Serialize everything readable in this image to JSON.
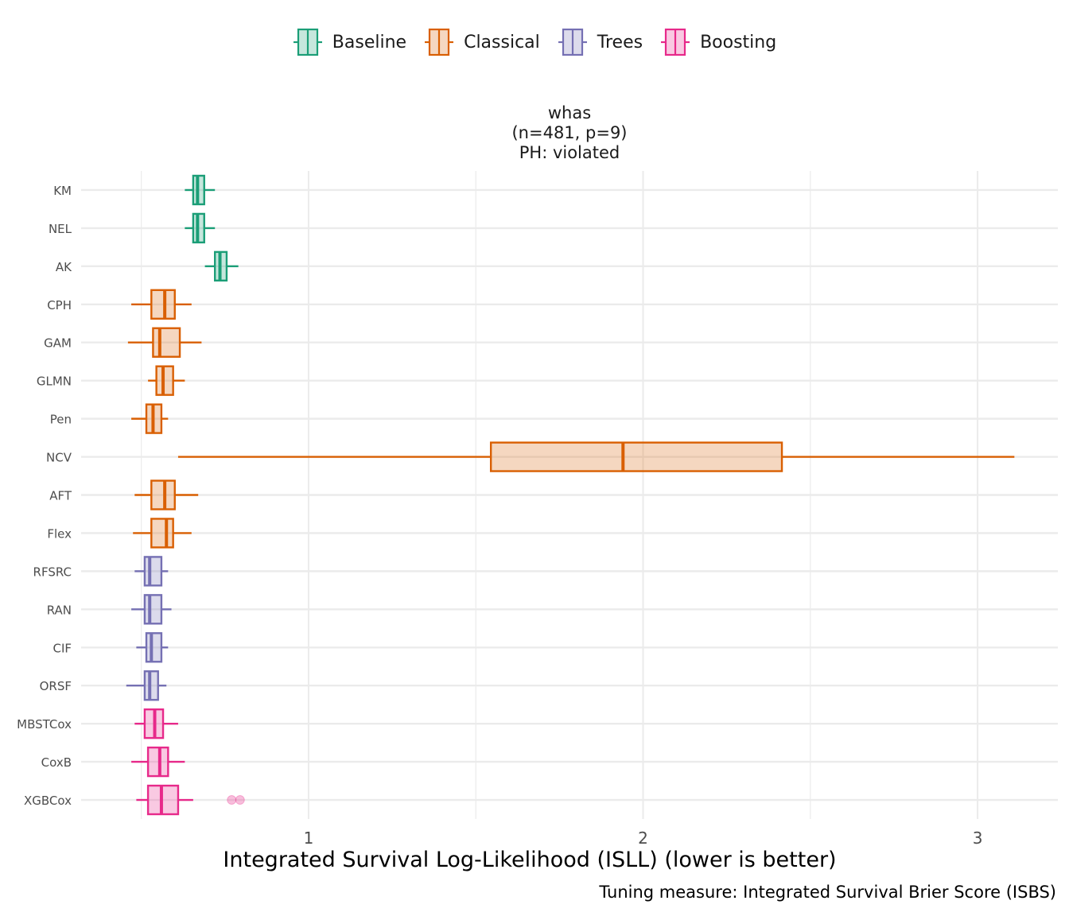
{
  "legend": [
    {
      "name": "Baseline",
      "color": "#1b9e77"
    },
    {
      "name": "Classical",
      "color": "#d95f02"
    },
    {
      "name": "Trees",
      "color": "#7570b3"
    },
    {
      "name": "Boosting",
      "color": "#e7298a"
    }
  ],
  "facet": {
    "line1": "whas",
    "line2": "(n=481, p=9)",
    "line3": "PH: violated"
  },
  "x_title": "Integrated Survival Log-Likelihood (ISLL) (lower is better)",
  "caption": "Tuning measure: Integrated Survival Brier Score (ISBS)",
  "chart_data": {
    "type": "boxplot",
    "orientation": "horizontal",
    "xlim": [
      0.32,
      3.24
    ],
    "x_ticks": [
      1,
      2,
      3
    ],
    "x_tick_labels": [
      "1",
      "2",
      "3"
    ],
    "grid": true,
    "legend_position": "top",
    "categories": [
      "KM",
      "NEL",
      "AK",
      "CPH",
      "GAM",
      "GLMN",
      "Pen",
      "NCV",
      "AFT",
      "Flex",
      "RFSRC",
      "RAN",
      "CIF",
      "ORSF",
      "MBSTCox",
      "CoxB",
      "XGBCox"
    ],
    "boxes": [
      {
        "label": "KM",
        "group": "Baseline",
        "whisker_low": 0.63,
        "q1": 0.655,
        "median": 0.668,
        "q3": 0.688,
        "whisker_high": 0.72,
        "outliers": []
      },
      {
        "label": "NEL",
        "group": "Baseline",
        "whisker_low": 0.63,
        "q1": 0.655,
        "median": 0.668,
        "q3": 0.688,
        "whisker_high": 0.72,
        "outliers": []
      },
      {
        "label": "AK",
        "group": "Baseline",
        "whisker_low": 0.69,
        "q1": 0.72,
        "median": 0.735,
        "q3": 0.755,
        "whisker_high": 0.79,
        "outliers": []
      },
      {
        "label": "CPH",
        "group": "Classical",
        "whisker_low": 0.47,
        "q1": 0.53,
        "median": 0.57,
        "q3": 0.6,
        "whisker_high": 0.65,
        "outliers": []
      },
      {
        "label": "GAM",
        "group": "Classical",
        "whisker_low": 0.46,
        "q1": 0.535,
        "median": 0.555,
        "q3": 0.615,
        "whisker_high": 0.68,
        "outliers": []
      },
      {
        "label": "GLMN",
        "group": "Classical",
        "whisker_low": 0.52,
        "q1": 0.545,
        "median": 0.565,
        "q3": 0.595,
        "whisker_high": 0.63,
        "outliers": []
      },
      {
        "label": "Pen",
        "group": "Classical",
        "whisker_low": 0.47,
        "q1": 0.515,
        "median": 0.535,
        "q3": 0.56,
        "whisker_high": 0.58,
        "outliers": []
      },
      {
        "label": "NCV",
        "group": "Classical",
        "whisker_low": 0.61,
        "q1": 1.545,
        "median": 1.94,
        "q3": 2.415,
        "whisker_high": 3.11,
        "outliers": []
      },
      {
        "label": "AFT",
        "group": "Classical",
        "whisker_low": 0.48,
        "q1": 0.53,
        "median": 0.57,
        "q3": 0.6,
        "whisker_high": 0.67,
        "outliers": []
      },
      {
        "label": "Flex",
        "group": "Classical",
        "whisker_low": 0.475,
        "q1": 0.53,
        "median": 0.575,
        "q3": 0.595,
        "whisker_high": 0.65,
        "outliers": []
      },
      {
        "label": "RFSRC",
        "group": "Trees",
        "whisker_low": 0.48,
        "q1": 0.51,
        "median": 0.525,
        "q3": 0.56,
        "whisker_high": 0.58,
        "outliers": []
      },
      {
        "label": "RAN",
        "group": "Trees",
        "whisker_low": 0.47,
        "q1": 0.51,
        "median": 0.525,
        "q3": 0.56,
        "whisker_high": 0.59,
        "outliers": []
      },
      {
        "label": "CIF",
        "group": "Trees",
        "whisker_low": 0.485,
        "q1": 0.515,
        "median": 0.53,
        "q3": 0.56,
        "whisker_high": 0.58,
        "outliers": []
      },
      {
        "label": "ORSF",
        "group": "Trees",
        "whisker_low": 0.455,
        "q1": 0.51,
        "median": 0.525,
        "q3": 0.55,
        "whisker_high": 0.575,
        "outliers": []
      },
      {
        "label": "MBSTCox",
        "group": "Boosting",
        "whisker_low": 0.48,
        "q1": 0.51,
        "median": 0.54,
        "q3": 0.565,
        "whisker_high": 0.61,
        "outliers": []
      },
      {
        "label": "CoxB",
        "group": "Boosting",
        "whisker_low": 0.47,
        "q1": 0.52,
        "median": 0.555,
        "q3": 0.58,
        "whisker_high": 0.63,
        "outliers": []
      },
      {
        "label": "XGBCox",
        "group": "Boosting",
        "whisker_low": 0.485,
        "q1": 0.52,
        "median": 0.56,
        "q3": 0.61,
        "whisker_high": 0.655,
        "outliers": [
          0.77,
          0.795
        ]
      }
    ]
  }
}
